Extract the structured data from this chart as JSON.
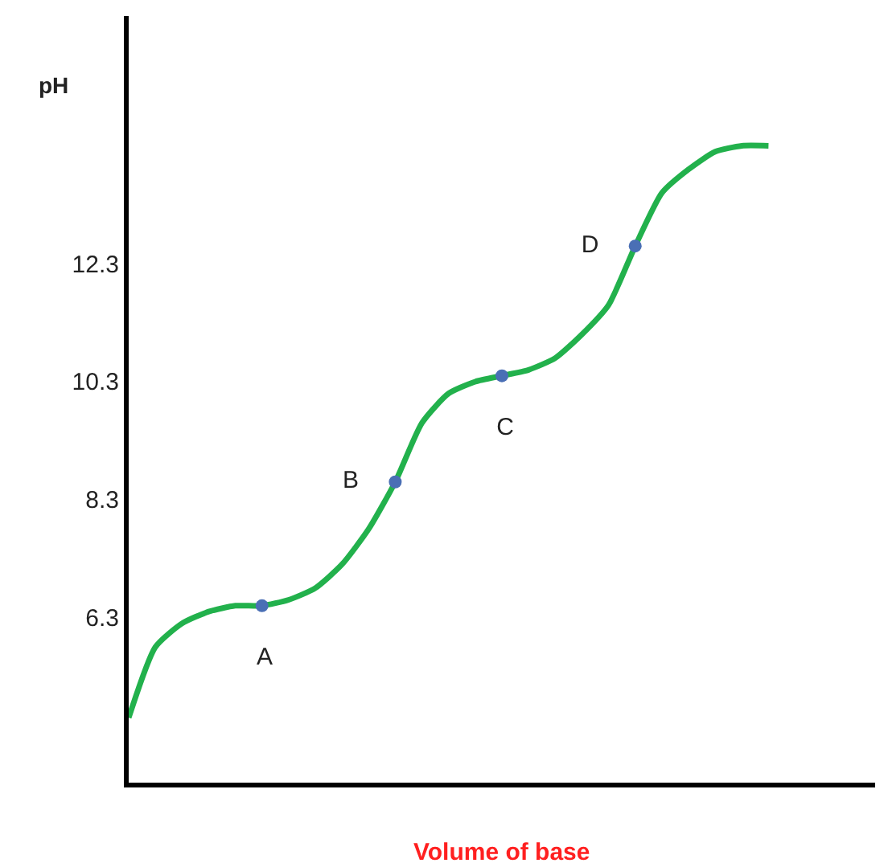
{
  "chart_data": {
    "type": "line",
    "ylabel": "pH",
    "xlabel": "Volume of base",
    "categories": [
      null,
      null,
      null,
      null,
      null,
      null,
      null,
      null,
      null,
      null,
      null,
      null,
      null,
      null,
      null,
      null,
      null,
      null,
      null,
      null,
      null,
      null,
      null,
      null,
      null,
      null,
      null,
      null,
      null
    ],
    "series": [
      {
        "color": "#22b14c",
        "values": [
          4.6,
          5.8,
          6.2,
          6.4,
          6.5,
          6.5,
          6.6,
          6.8,
          7.2,
          7.8,
          8.6,
          9.6,
          10.1,
          10.3,
          10.4,
          10.5,
          10.7,
          11.1,
          11.6,
          12.6,
          13.5,
          13.9,
          14.2,
          14.3,
          14.3,
          null,
          null,
          null,
          null
        ]
      },
      {
        "type": "scatter",
        "color": "#4a6fb5",
        "marker": "circle",
        "values": [
          null,
          null,
          null,
          null,
          null,
          6.5,
          null,
          null,
          null,
          null,
          8.6,
          null,
          null,
          null,
          10.4,
          null,
          null,
          null,
          null,
          12.6,
          null,
          null,
          null,
          null,
          null,
          null,
          null,
          null,
          null
        ],
        "value_labels": [
          null,
          null,
          null,
          null,
          null,
          "A",
          null,
          null,
          null,
          null,
          "B",
          null,
          null,
          null,
          "C",
          null,
          null,
          null,
          null,
          "D",
          null,
          null,
          null,
          null,
          null,
          null,
          null,
          null,
          null
        ]
      }
    ],
    "ylim": [
      3.5,
      16.5
    ],
    "yticks": [
      6.3,
      8.3,
      10.3,
      12.3
    ],
    "tick_labels": "y"
  }
}
